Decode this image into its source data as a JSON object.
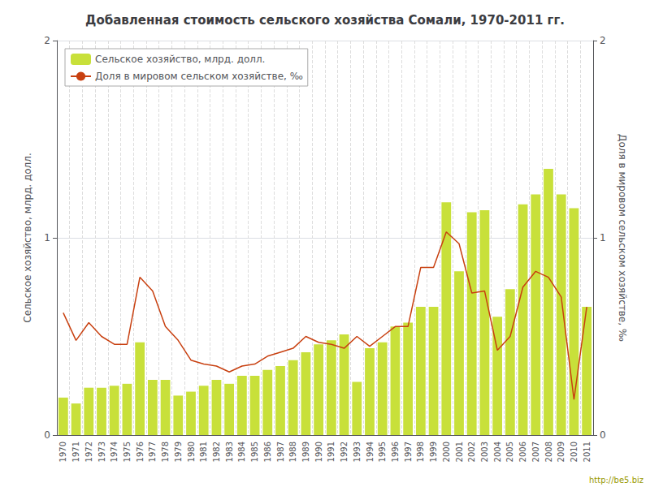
{
  "chart_data": {
    "type": "bar",
    "title": "Добавленная стоимость сельского хозяйства Сомали, 1970-2011 гг.",
    "categories": [
      "1970",
      "1971",
      "1972",
      "1973",
      "1974",
      "1975",
      "1976",
      "1977",
      "1978",
      "1979",
      "1980",
      "1981",
      "1982",
      "1983",
      "1984",
      "1985",
      "1986",
      "1987",
      "1988",
      "1989",
      "1990",
      "1991",
      "1992",
      "1993",
      "1994",
      "1995",
      "1996",
      "1997",
      "1998",
      "1999",
      "2000",
      "2001",
      "2002",
      "2003",
      "2004",
      "2005",
      "2006",
      "2007",
      "2008",
      "2009",
      "2010",
      "2011"
    ],
    "series": [
      {
        "name": "Сельское хозяйство, млрд. долл.",
        "type": "bar",
        "color": "#c8e03a",
        "values": [
          0.19,
          0.16,
          0.24,
          0.24,
          0.25,
          0.26,
          0.47,
          0.28,
          0.28,
          0.2,
          0.22,
          0.25,
          0.28,
          0.26,
          0.3,
          0.3,
          0.33,
          0.35,
          0.38,
          0.42,
          0.46,
          0.48,
          0.51,
          0.27,
          0.44,
          0.47,
          0.55,
          0.57,
          0.65,
          0.65,
          1.18,
          0.83,
          1.13,
          1.14,
          0.6,
          0.74,
          1.17,
          1.22,
          1.35,
          1.22,
          1.15,
          0.65
        ]
      },
      {
        "name": "Доля в мировом сельском хозяйстве, ‰",
        "type": "line",
        "color": "#c84010",
        "axis": "y2",
        "values": [
          0.62,
          0.48,
          0.57,
          0.5,
          0.46,
          0.46,
          0.8,
          0.73,
          0.55,
          0.48,
          0.38,
          0.36,
          0.35,
          0.32,
          0.35,
          0.36,
          0.4,
          0.42,
          0.44,
          0.5,
          0.47,
          0.46,
          0.44,
          0.5,
          0.45,
          0.5,
          0.55,
          0.55,
          0.85,
          0.85,
          1.03,
          0.97,
          0.72,
          0.73,
          0.43,
          0.5,
          0.75,
          0.83,
          0.8,
          0.7,
          0.18,
          0.65
        ]
      }
    ],
    "ylabel": "Сельское хозяйство, млрд. долл.",
    "y2label": "Доля в мировом сельском хозяйстве, ‰",
    "ylim": [
      0,
      2
    ],
    "yticks": [
      0,
      1,
      2
    ],
    "y2lim": [
      0,
      2
    ],
    "y2ticks": [
      0,
      1,
      2
    ],
    "grid": true,
    "legend": "upper left",
    "annotations": [
      "http://be5.biz"
    ]
  }
}
